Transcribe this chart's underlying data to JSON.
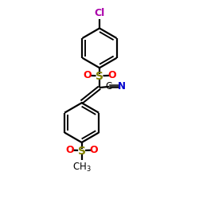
{
  "bg_color": "#ffffff",
  "atom_colors": {
    "C": "#000000",
    "N": "#0000cd",
    "O": "#ff0000",
    "S": "#808000",
    "Cl": "#aa00aa"
  },
  "bond_color": "#000000",
  "figsize": [
    2.5,
    2.5
  ],
  "dpi": 100
}
